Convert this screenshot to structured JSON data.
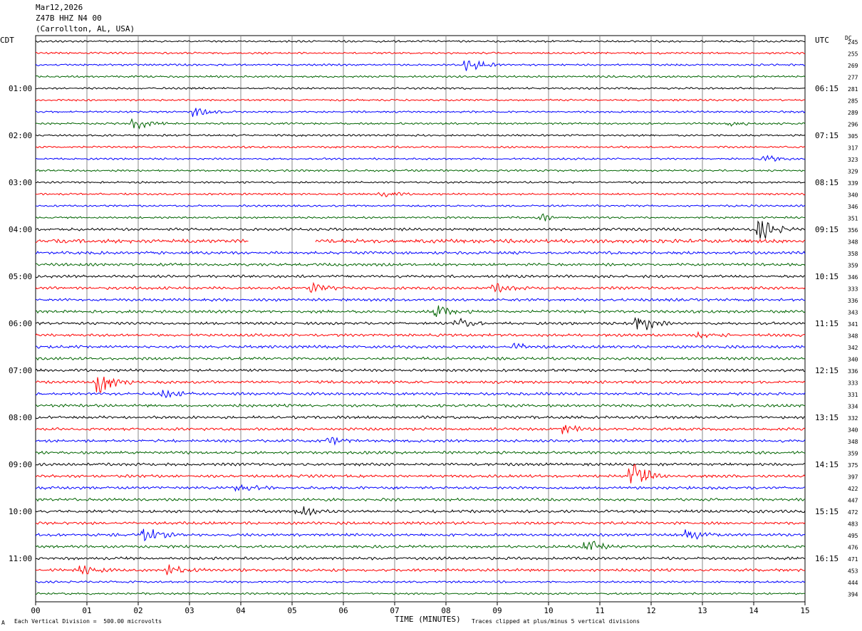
{
  "header": {
    "date": "Mar12,2026",
    "station": "Z47B HHZ N4 00",
    "location": "(Carrollton, AL, USA)"
  },
  "left_tz": "CDT",
  "right_tz": "UTC",
  "dc_label": "DC",
  "footer": {
    "scale_note": "Each Vertical Division =  500.00 microvolts",
    "xlabel": "TIME (MINUTES)",
    "clip_note": "Traces clipped at plus/minus 5 vertical divisions",
    "corner_mark": "A"
  },
  "colors": {
    "black": "#000000",
    "red": "#ff0000",
    "blue": "#0000ff",
    "green": "#006400"
  },
  "chart_data": {
    "type": "line",
    "x_ticks": [
      "00",
      "01",
      "02",
      "03",
      "04",
      "05",
      "06",
      "07",
      "08",
      "09",
      "10",
      "11",
      "12",
      "13",
      "14",
      "15"
    ],
    "xlim": [
      0,
      15
    ],
    "trace_colors": [
      "black",
      "red",
      "blue",
      "green"
    ],
    "left_hour_labels": [
      "01:00",
      "02:00",
      "03:00",
      "04:00",
      "05:00",
      "06:00",
      "07:00",
      "08:00",
      "09:00",
      "10:00",
      "11:00"
    ],
    "right_hour_labels": [
      "06:15",
      "07:15",
      "08:15",
      "09:15",
      "10:15",
      "11:15",
      "12:15",
      "13:15",
      "14:15",
      "15:15",
      "16:15"
    ],
    "dc_offsets": [
      "245",
      "255",
      "269",
      "277",
      "281",
      "285",
      "289",
      "296",
      "305",
      "317",
      "323",
      "329",
      "339",
      "340",
      "346",
      "351",
      "356",
      "348",
      "358",
      "359",
      "346",
      "333",
      "336",
      "343",
      "341",
      "348",
      "342",
      "340",
      "336",
      "333",
      "331",
      "334",
      "332",
      "340",
      "348",
      "359",
      "375",
      "397",
      "422",
      "447",
      "472",
      "483",
      "495",
      "476",
      "471",
      "453",
      "444",
      "394"
    ],
    "events": [
      {
        "trace": 2,
        "minute": 8.5,
        "amp": 1.2
      },
      {
        "trace": 6,
        "minute": 3.2,
        "amp": 1.0
      },
      {
        "trace": 7,
        "minute": 2.0,
        "amp": 1.0
      },
      {
        "trace": 7,
        "minute": 13.6,
        "amp": 0.5
      },
      {
        "trace": 10,
        "minute": 14.3,
        "amp": 0.6
      },
      {
        "trace": 13,
        "minute": 6.8,
        "amp": 0.6
      },
      {
        "trace": 15,
        "minute": 9.9,
        "amp": 0.6
      },
      {
        "trace": 16,
        "minute": 14.2,
        "amp": 1.8
      },
      {
        "trace": 21,
        "minute": 5.5,
        "amp": 0.8
      },
      {
        "trace": 21,
        "minute": 9.0,
        "amp": 0.7
      },
      {
        "trace": 23,
        "minute": 7.9,
        "amp": 1.2
      },
      {
        "trace": 24,
        "minute": 8.3,
        "amp": 0.8
      },
      {
        "trace": 24,
        "minute": 11.8,
        "amp": 2.0
      },
      {
        "trace": 25,
        "minute": 13.0,
        "amp": 0.6
      },
      {
        "trace": 26,
        "minute": 9.4,
        "amp": 0.7
      },
      {
        "trace": 29,
        "minute": 1.3,
        "amp": 2.5
      },
      {
        "trace": 30,
        "minute": 2.6,
        "amp": 0.6
      },
      {
        "trace": 33,
        "minute": 10.4,
        "amp": 0.8
      },
      {
        "trace": 34,
        "minute": 5.8,
        "amp": 0.5
      },
      {
        "trace": 37,
        "minute": 11.7,
        "amp": 2.8
      },
      {
        "trace": 38,
        "minute": 4.0,
        "amp": 0.8
      },
      {
        "trace": 40,
        "minute": 5.2,
        "amp": 1.3
      },
      {
        "trace": 42,
        "minute": 2.2,
        "amp": 1.3
      },
      {
        "trace": 42,
        "minute": 12.8,
        "amp": 1.0
      },
      {
        "trace": 43,
        "minute": 10.8,
        "amp": 1.6
      },
      {
        "trace": 45,
        "minute": 1.0,
        "amp": 0.7
      },
      {
        "trace": 45,
        "minute": 2.7,
        "amp": 1.0
      }
    ],
    "gaps": [
      {
        "trace": 17,
        "from": 4.15,
        "to": 5.45
      }
    ]
  }
}
